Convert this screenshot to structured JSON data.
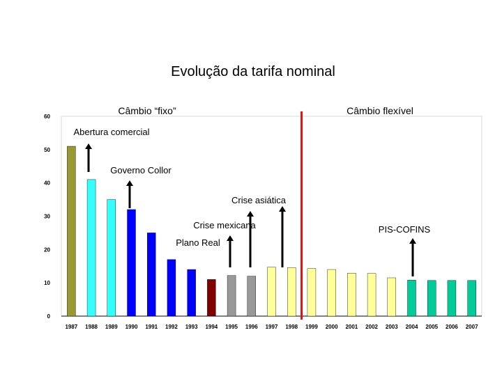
{
  "chart_data": {
    "type": "bar",
    "title": "Evolução da tarifa nominal",
    "regimes": {
      "fixed": "Câmbio “fixo”",
      "flexible": "Câmbio flexível"
    },
    "regime_break_after": "1998",
    "categories": [
      "1987",
      "1988",
      "1989",
      "1990",
      "1991",
      "1992",
      "1993",
      "1994",
      "1995",
      "1996",
      "1997",
      "1998",
      "1999",
      "2000",
      "2001",
      "2002",
      "2003",
      "2004",
      "2005",
      "2006",
      "2007"
    ],
    "values": [
      51,
      41,
      35,
      32,
      25,
      17,
      14,
      11,
      12.2,
      12,
      14.7,
      14.6,
      14.3,
      14,
      12.9,
      12.8,
      11.5,
      10.8,
      10.7,
      10.7,
      10.7
    ],
    "colors": [
      "#999933",
      "#33ffff",
      "#33ffff",
      "#0000ff",
      "#0000ff",
      "#0000ff",
      "#0000ff",
      "#800000",
      "#999999",
      "#999999",
      "#ffff99",
      "#ffff99",
      "#ffff99",
      "#ffff99",
      "#ffff99",
      "#ffff99",
      "#ffff99",
      "#00cc99",
      "#00cc99",
      "#00cc99",
      "#00cc99"
    ],
    "ylim": [
      0,
      60
    ],
    "yticks": [
      0,
      10,
      20,
      30,
      40,
      50,
      60
    ],
    "xlabel": "",
    "ylabel": "",
    "grid": false,
    "annotations": [
      {
        "text": "Abertura comercial",
        "year": "1988"
      },
      {
        "text": "Governo Collor",
        "year": "1990"
      },
      {
        "text": "Plano Real",
        "year": "1994"
      },
      {
        "text": "Crise mexicana",
        "year": "1995"
      },
      {
        "text": "Crise asiática",
        "year": "1997"
      },
      {
        "text": "PIS-COFINS",
        "year": "2004"
      }
    ]
  }
}
